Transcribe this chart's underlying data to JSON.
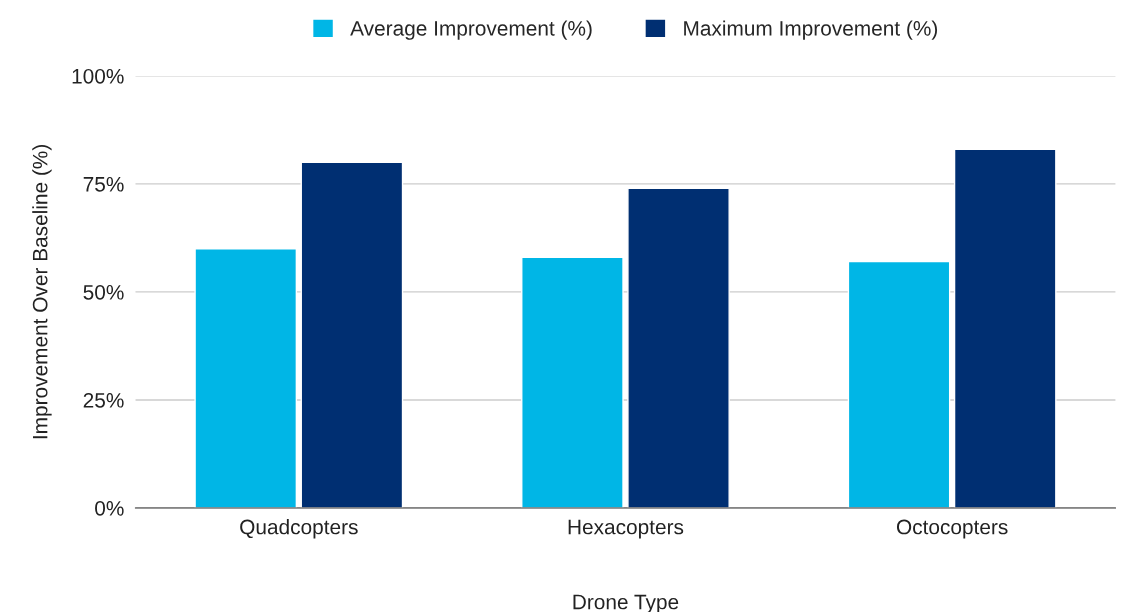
{
  "chart_data": {
    "type": "bar",
    "xlabel": "Drone Type",
    "ylabel": "Improvement Over Baseline (%)",
    "categories": [
      "Quadcopters",
      "Hexacopters",
      "Octocopters"
    ],
    "series": [
      {
        "name": "Average Improvement (%)",
        "color": "#00b6e6",
        "values": [
          60,
          58,
          57
        ]
      },
      {
        "name": "Maximum Improvement (%)",
        "color": "#002f72",
        "values": [
          80,
          74,
          83
        ]
      }
    ],
    "ylim": [
      0,
      100
    ],
    "yticks": [
      {
        "value": 0,
        "label": "0%"
      },
      {
        "value": 25,
        "label": "25%"
      },
      {
        "value": 50,
        "label": "50%"
      },
      {
        "value": 75,
        "label": "75%"
      },
      {
        "value": 100,
        "label": "100%"
      }
    ],
    "grid": "y",
    "legend": "top"
  }
}
